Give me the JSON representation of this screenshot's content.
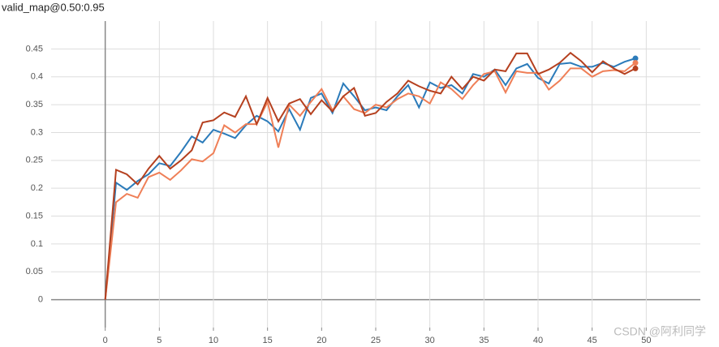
{
  "chart_data": {
    "type": "line",
    "title": "valid_map@0.50:0.95",
    "x": [
      0,
      1,
      2,
      3,
      4,
      5,
      6,
      7,
      8,
      9,
      10,
      11,
      12,
      13,
      14,
      15,
      16,
      17,
      18,
      19,
      20,
      21,
      22,
      23,
      24,
      25,
      26,
      27,
      28,
      29,
      30,
      31,
      32,
      33,
      34,
      35,
      36,
      37,
      38,
      39,
      40,
      41,
      42,
      43,
      44,
      45,
      46,
      47,
      48,
      49
    ],
    "series": [
      {
        "color": "#2b7bba",
        "values": [
          0,
          0.21,
          0.197,
          0.213,
          0.225,
          0.245,
          0.24,
          0.265,
          0.293,
          0.282,
          0.305,
          0.298,
          0.29,
          0.313,
          0.33,
          0.32,
          0.302,
          0.342,
          0.305,
          0.362,
          0.37,
          0.335,
          0.388,
          0.365,
          0.34,
          0.345,
          0.34,
          0.365,
          0.385,
          0.345,
          0.39,
          0.38,
          0.385,
          0.37,
          0.405,
          0.4,
          0.413,
          0.385,
          0.415,
          0.423,
          0.398,
          0.388,
          0.423,
          0.425,
          0.418,
          0.418,
          0.425,
          0.418,
          0.427,
          0.433
        ]
      },
      {
        "color": "#ef7f57",
        "values": [
          0,
          0.175,
          0.19,
          0.183,
          0.22,
          0.228,
          0.215,
          0.232,
          0.252,
          0.248,
          0.263,
          0.313,
          0.3,
          0.315,
          0.315,
          0.355,
          0.273,
          0.35,
          0.33,
          0.355,
          0.378,
          0.34,
          0.365,
          0.342,
          0.335,
          0.35,
          0.345,
          0.36,
          0.37,
          0.365,
          0.352,
          0.39,
          0.378,
          0.36,
          0.385,
          0.405,
          0.41,
          0.372,
          0.41,
          0.407,
          0.407,
          0.377,
          0.393,
          0.415,
          0.415,
          0.4,
          0.41,
          0.412,
          0.41,
          0.425
        ]
      },
      {
        "color": "#b5401f",
        "values": [
          0,
          0.233,
          0.225,
          0.207,
          0.235,
          0.258,
          0.235,
          0.25,
          0.268,
          0.318,
          0.322,
          0.336,
          0.328,
          0.365,
          0.315,
          0.362,
          0.32,
          0.352,
          0.36,
          0.333,
          0.358,
          0.338,
          0.365,
          0.38,
          0.33,
          0.335,
          0.355,
          0.37,
          0.393,
          0.383,
          0.375,
          0.37,
          0.4,
          0.378,
          0.4,
          0.393,
          0.413,
          0.41,
          0.442,
          0.442,
          0.405,
          0.413,
          0.425,
          0.443,
          0.428,
          0.408,
          0.428,
          0.415,
          0.405,
          0.415
        ]
      }
    ],
    "xlim": [
      -5,
      55
    ],
    "xticks": [
      0,
      5,
      10,
      15,
      20,
      25,
      30,
      35,
      40,
      45,
      50
    ],
    "ylim": [
      -0.05,
      0.5
    ],
    "yticks": [
      0,
      0.05,
      0.1,
      0.15,
      0.2,
      0.25,
      0.3,
      0.35,
      0.4,
      0.45
    ],
    "grid": true,
    "watermark": "CSDN @阿利同学"
  }
}
